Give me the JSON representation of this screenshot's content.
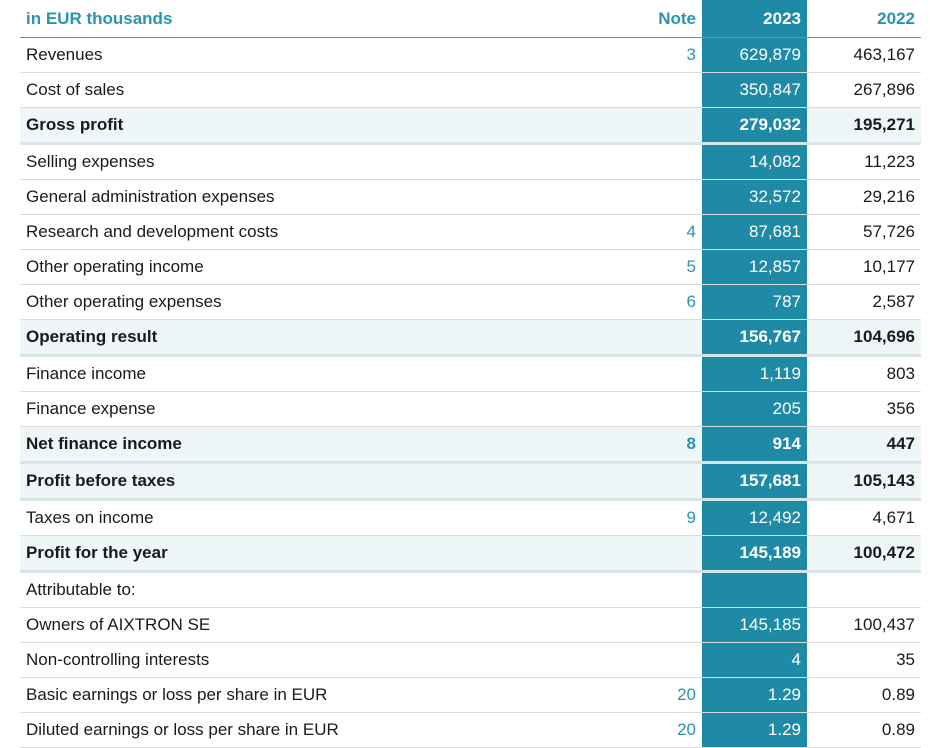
{
  "header": {
    "label": "in EUR thousands",
    "note": "Note",
    "year_current": "2023",
    "year_prior": "2022"
  },
  "rows": [
    {
      "label": "Revenues",
      "note": "3",
      "y2023": "629,879",
      "y2022": "463,167"
    },
    {
      "label": "Cost of sales",
      "note": "",
      "y2023": "350,847",
      "y2022": "267,896"
    },
    {
      "label": "Gross profit",
      "note": "",
      "y2023": "279,032",
      "y2022": "195,271"
    },
    {
      "label": "Selling expenses",
      "note": "",
      "y2023": "14,082",
      "y2022": "11,223"
    },
    {
      "label": "General administration expenses",
      "note": "",
      "y2023": "32,572",
      "y2022": "29,216"
    },
    {
      "label": "Research and development costs",
      "note": "4",
      "y2023": "87,681",
      "y2022": "57,726"
    },
    {
      "label": "Other operating income",
      "note": "5",
      "y2023": "12,857",
      "y2022": "10,177"
    },
    {
      "label": "Other operating expenses",
      "note": "6",
      "y2023": "787",
      "y2022": "2,587"
    },
    {
      "label": "Operating result",
      "note": "",
      "y2023": "156,767",
      "y2022": "104,696"
    },
    {
      "label": "Finance income",
      "note": "",
      "y2023": "1,119",
      "y2022": "803"
    },
    {
      "label": "Finance expense",
      "note": "",
      "y2023": "205",
      "y2022": "356"
    },
    {
      "label": "Net finance income",
      "note": "8",
      "y2023": "914",
      "y2022": "447"
    },
    {
      "label": "Profit before taxes",
      "note": "",
      "y2023": "157,681",
      "y2022": "105,143"
    },
    {
      "label": "Taxes on income",
      "note": "9",
      "y2023": "12,492",
      "y2022": "4,671"
    },
    {
      "label": "Profit for the year",
      "note": "",
      "y2023": "145,189",
      "y2022": "100,472"
    },
    {
      "label": "Attributable to:",
      "note": "",
      "y2023": "",
      "y2022": ""
    },
    {
      "label": "Owners of AIXTRON SE",
      "note": "",
      "y2023": "145,185",
      "y2022": "100,437"
    },
    {
      "label": "Non-controlling interests",
      "note": "",
      "y2023": "4",
      "y2022": "35"
    },
    {
      "label": "Basic earnings or loss per share in EUR",
      "note": "20",
      "y2023": "1.29",
      "y2022": "0.89"
    },
    {
      "label": "Diluted earnings or loss per share in EUR",
      "note": "20",
      "y2023": "1.29",
      "y2022": "0.89"
    }
  ],
  "colors": {
    "accent": "#2a93ad",
    "current_year_column": "#1f8aa6",
    "total_row_background": "#eef6f8"
  }
}
